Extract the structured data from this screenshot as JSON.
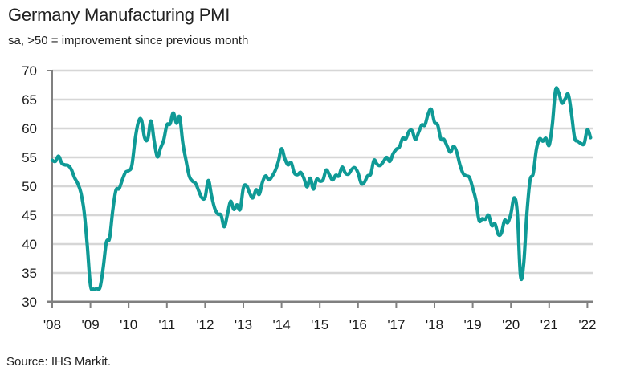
{
  "title": "Germany Manufacturing PMI",
  "subtitle": "sa, >50 = improvement since previous month",
  "source": "Source: IHS Markit.",
  "colors": {
    "line": "#0f9a96",
    "grid": "#d6d6d6",
    "axis": "#808080"
  },
  "chart_data": {
    "type": "line",
    "title": "Germany Manufacturing PMI",
    "subtitle": "sa, >50 = improvement since previous month",
    "xlabel": "",
    "ylabel": "",
    "ylim": [
      30,
      70
    ],
    "yticks": [
      30,
      35,
      40,
      45,
      50,
      55,
      60,
      65,
      70
    ],
    "ytick_labels": [
      "30",
      "35",
      "40",
      "45",
      "50",
      "55",
      "60",
      "65",
      "70"
    ],
    "xticks": [
      "'08",
      "'09",
      "'10",
      "'11",
      "'12",
      "'13",
      "'14",
      "'15",
      "'16",
      "'17",
      "'18",
      "'19",
      "'20",
      "'21",
      "'22"
    ],
    "x_start": "2008-01",
    "x_frequency": "monthly",
    "grid": true,
    "legend": "none",
    "series": [
      {
        "name": "Germany Manufacturing PMI",
        "values": [
          54.5,
          54.3,
          55.2,
          54.0,
          53.7,
          53.6,
          52.9,
          51.5,
          50.5,
          48.9,
          45.7,
          39.8,
          32.9,
          32.2,
          32.3,
          32.5,
          35.9,
          40.3,
          41.0,
          45.8,
          49.3,
          49.6,
          51.1,
          52.4,
          52.7,
          53.6,
          58.0,
          61.0,
          61.5,
          58.4,
          58.2,
          61.3,
          57.9,
          55.1,
          56.6,
          58.0,
          60.6,
          60.8,
          62.7,
          60.9,
          62.0,
          57.5,
          54.5,
          51.8,
          50.9,
          50.5,
          49.2,
          48.0,
          48.1,
          51.0,
          48.4,
          46.2,
          45.2,
          45.0,
          43.0,
          45.1,
          47.4,
          46.0,
          46.8,
          46.0,
          49.7,
          50.1,
          48.8,
          48.0,
          49.4,
          48.6,
          50.7,
          51.8,
          51.1,
          51.7,
          52.7,
          54.3,
          56.5,
          54.8,
          53.7,
          54.1,
          52.3,
          52.0,
          52.4,
          51.4,
          49.9,
          51.4,
          49.5,
          51.2,
          50.9,
          51.1,
          52.8,
          52.0,
          51.1,
          51.9,
          51.8,
          53.3,
          52.3,
          52.1,
          52.9,
          53.2,
          52.3,
          50.5,
          50.7,
          51.8,
          52.1,
          54.5,
          53.8,
          53.6,
          54.3,
          55.0,
          54.3,
          55.6,
          56.4,
          56.8,
          58.3,
          58.2,
          59.5,
          59.6,
          58.1,
          59.3,
          60.6,
          60.6,
          62.5,
          63.3,
          61.1,
          60.6,
          58.2,
          58.1,
          56.9,
          55.9,
          56.9,
          55.9,
          53.7,
          52.2,
          51.8,
          51.5,
          49.7,
          47.6,
          44.1,
          44.4,
          44.3,
          45.0,
          43.2,
          43.5,
          41.7,
          41.9,
          44.1,
          43.7,
          45.3,
          48.0,
          45.4,
          34.5,
          36.6,
          45.2,
          51.0,
          52.2,
          56.4,
          58.2,
          57.8,
          58.3,
          57.1,
          60.7,
          66.6,
          66.2,
          64.4,
          65.1,
          65.9,
          62.6,
          58.4,
          57.8,
          57.4,
          57.4,
          59.8,
          58.4
        ]
      }
    ]
  }
}
